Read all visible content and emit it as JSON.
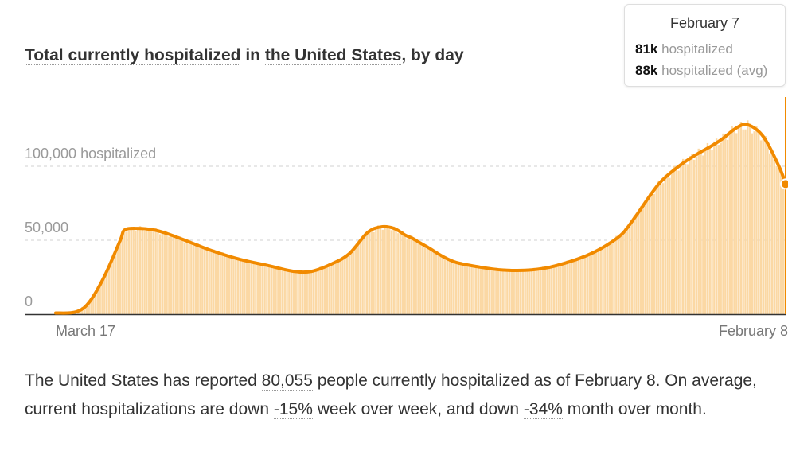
{
  "title": {
    "part1": "Total currently hospitalized",
    "part2": " in ",
    "part3": "the United States",
    "part4": ", by day"
  },
  "tooltip": {
    "date": "February 7",
    "value1": "81k",
    "label1": "hospitalized",
    "value2": "88k",
    "label2": "hospitalized (avg)"
  },
  "summary": {
    "text1": "The United States has reported ",
    "stat1": "80,055",
    "text2": " people currently hospitalized as of February 8. On average, current hospitalizations are down ",
    "stat2": "-15%",
    "text3": " week over week, and down ",
    "stat3": "-34%",
    "text4": " month over month."
  },
  "colors": {
    "line": "#f18a00",
    "bars": "#fbd8a4",
    "axis": "#333333",
    "grid": "#d0d0d0"
  },
  "chart_data": {
    "type": "area",
    "title": "Total currently hospitalized in the United States, by day",
    "ylabel": "",
    "xlabel": "",
    "ylim": [
      0,
      145000
    ],
    "y_ticks": [
      {
        "value": 0,
        "label": "0"
      },
      {
        "value": 50000,
        "label": "50,000"
      },
      {
        "value": 100000,
        "label": "100,000 hospitalized"
      }
    ],
    "x_ticks": [
      {
        "index": 0,
        "label": "March 17"
      },
      {
        "index": 328,
        "label": "February 8"
      }
    ],
    "grid": true,
    "legend": "none",
    "series": [
      {
        "name": "hospitalized (avg)",
        "x_index": [
          0,
          9,
          15,
          22,
          29,
          31,
          37,
          44,
          50,
          58,
          70,
          83,
          95,
          107,
          115,
          124,
          132,
          140,
          146,
          152,
          157,
          160,
          164,
          168,
          174,
          180,
          190,
          200,
          211,
          222,
          234,
          242,
          249,
          255,
          261,
          271,
          280,
          288,
          295,
          300,
          306,
          311,
          318,
          325,
          328
        ],
        "values": [
          800,
          1500,
          8000,
          26000,
          50000,
          57000,
          58000,
          57000,
          54500,
          50000,
          43000,
          37000,
          33000,
          29000,
          29000,
          34000,
          41000,
          55000,
          59000,
          58000,
          53500,
          51500,
          48000,
          44500,
          39000,
          35000,
          32000,
          30000,
          29700,
          31800,
          37000,
          42000,
          48000,
          55000,
          67000,
          88000,
          100000,
          108000,
          114000,
          119000,
          126000,
          128000,
          120000,
          100000,
          88000
        ]
      }
    ],
    "highlight": {
      "index": 328,
      "value": 88000
    }
  }
}
